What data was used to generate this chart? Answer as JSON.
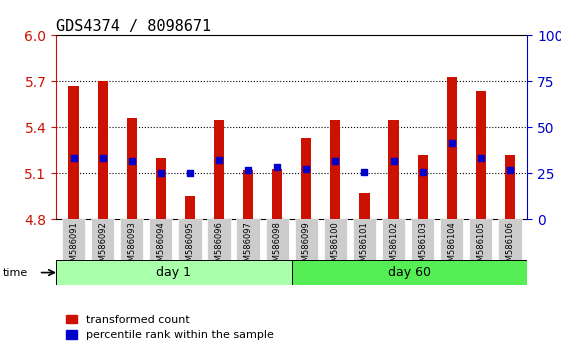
{
  "title": "GDS4374 / 8098671",
  "samples": [
    "GSM586091",
    "GSM586092",
    "GSM586093",
    "GSM586094",
    "GSM586095",
    "GSM586096",
    "GSM586097",
    "GSM586098",
    "GSM586099",
    "GSM586100",
    "GSM586101",
    "GSM586102",
    "GSM586103",
    "GSM586104",
    "GSM586105",
    "GSM586106"
  ],
  "transformed_count": [
    5.67,
    5.7,
    5.46,
    5.2,
    4.95,
    5.45,
    5.12,
    5.13,
    5.33,
    5.45,
    4.97,
    5.45,
    5.22,
    5.73,
    5.64,
    5.22
  ],
  "percentile_rank": [
    5.2,
    5.2,
    5.18,
    5.1,
    5.1,
    5.19,
    5.12,
    5.14,
    5.13,
    5.18,
    5.11,
    5.18,
    5.11,
    5.3,
    5.2,
    5.12
  ],
  "ylim_left": [
    4.8,
    6.0
  ],
  "ylim_right": [
    0,
    100
  ],
  "yticks_left": [
    4.8,
    5.1,
    5.4,
    5.7,
    6.0
  ],
  "yticks_right": [
    0,
    25,
    50,
    75,
    100
  ],
  "bar_color": "#cc1100",
  "dot_color": "#0000cc",
  "background_color": "#ffffff",
  "plot_bg_color": "#ffffff",
  "grid_color": "#000000",
  "day1_group": [
    0,
    1,
    2,
    3,
    4,
    5,
    6,
    7
  ],
  "day60_group": [
    8,
    9,
    10,
    11,
    12,
    13,
    14,
    15
  ],
  "day1_label": "day 1",
  "day60_label": "day 60",
  "day1_color": "#aaffaa",
  "day60_color": "#55ee55",
  "xlabel_color": "#cc0000",
  "ylabel_right_color": "#0000cc",
  "bar_bottom": 4.8,
  "legend_label1": "transformed count",
  "legend_label2": "percentile rank within the sample",
  "title_fontsize": 11,
  "tick_fontsize": 8,
  "label_fontsize": 8,
  "xticklabel_bg": "#cccccc"
}
